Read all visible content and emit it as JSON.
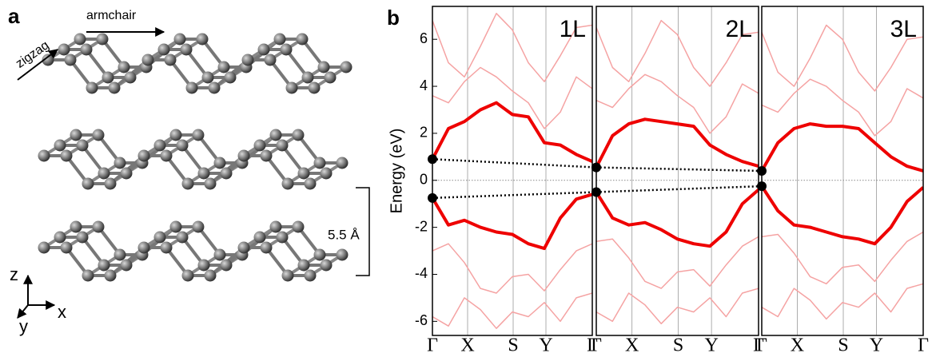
{
  "figure": {
    "panel_a_label": "a",
    "panel_b_label": "b",
    "armchair": "armchair",
    "zigzag": "zigzag",
    "interlayer": "5.5 Å",
    "axis_z": "z",
    "axis_x": "x",
    "axis_y": "y"
  },
  "chart_data": [
    {
      "type": "line",
      "title": "1L",
      "ylabel": "Energy (eV)",
      "x": [
        0,
        0.1,
        0.2,
        0.3,
        0.4,
        0.5,
        0.6,
        0.7,
        0.8,
        0.9,
        1
      ],
      "xlim": [
        0,
        1
      ],
      "xticks": [
        {
          "value": 0,
          "label": "Γ"
        },
        {
          "value": 0.22,
          "label": "X"
        },
        {
          "value": 0.505,
          "label": "S"
        },
        {
          "value": 0.71,
          "label": "Y"
        },
        {
          "value": 1,
          "label": "Γ"
        }
      ],
      "ylim": [
        -6.6,
        7.4
      ],
      "yticks": [
        -6,
        -4,
        -2,
        0,
        2,
        4,
        6
      ],
      "zero_line": true,
      "series": [
        {
          "color": "#f5a3a3",
          "line_width": 1.5,
          "values": [
            6.8,
            5.0,
            4.4,
            5.7,
            7.1,
            6.4,
            5.0,
            4.2,
            5.3,
            6.5,
            6.6
          ]
        },
        {
          "color": "#f5a3a3",
          "line_width": 1.5,
          "values": [
            3.6,
            3.3,
            4.2,
            4.8,
            4.4,
            3.8,
            3.3,
            2.2,
            2.9,
            4.4,
            3.9
          ]
        },
        {
          "color": "#f5a3a3",
          "line_width": 1.5,
          "values": [
            -3.0,
            -2.7,
            -3.5,
            -4.6,
            -4.8,
            -4.1,
            -4.0,
            -4.7,
            -3.8,
            -3.0,
            -2.7
          ]
        },
        {
          "color": "#f5a3a3",
          "line_width": 1.5,
          "values": [
            -5.8,
            -6.2,
            -5.0,
            -5.5,
            -6.3,
            -5.6,
            -5.8,
            -5.2,
            -6.0,
            -5.0,
            -4.8
          ]
        },
        {
          "color": "#ee0000",
          "line_width": 4,
          "marker_first": true,
          "values": [
            0.9,
            2.2,
            2.5,
            3.0,
            3.3,
            2.8,
            2.7,
            1.6,
            1.5,
            1.1,
            0.8
          ]
        },
        {
          "color": "#ee0000",
          "line_width": 4,
          "marker_first": true,
          "values": [
            -0.75,
            -1.9,
            -1.7,
            -2.0,
            -2.2,
            -2.3,
            -2.7,
            -2.9,
            -1.6,
            -0.8,
            -0.6
          ]
        }
      ]
    },
    {
      "type": "line",
      "title": "2L",
      "x": [
        0,
        0.1,
        0.2,
        0.3,
        0.4,
        0.5,
        0.6,
        0.7,
        0.8,
        0.9,
        1
      ],
      "xlim": [
        0,
        1
      ],
      "xticks": [
        {
          "value": 0,
          "label": "Γ"
        },
        {
          "value": 0.22,
          "label": "X"
        },
        {
          "value": 0.505,
          "label": "S"
        },
        {
          "value": 0.71,
          "label": "Y"
        },
        {
          "value": 1,
          "label": "Γ"
        }
      ],
      "ylim": [
        -6.6,
        7.4
      ],
      "zero_line": true,
      "series": [
        {
          "color": "#f5a3a3",
          "line_width": 1.5,
          "values": [
            6.5,
            4.8,
            4.2,
            5.4,
            6.8,
            6.2,
            4.8,
            4.0,
            5.0,
            6.2,
            6.3
          ]
        },
        {
          "color": "#f5a3a3",
          "line_width": 1.5,
          "values": [
            3.4,
            3.1,
            3.9,
            4.5,
            4.2,
            3.6,
            3.1,
            2.0,
            2.7,
            4.1,
            3.7
          ]
        },
        {
          "color": "#f5a3a3",
          "line_width": 1.5,
          "values": [
            -2.6,
            -2.5,
            -3.3,
            -4.3,
            -4.6,
            -3.9,
            -3.8,
            -4.5,
            -3.6,
            -2.8,
            -2.4
          ]
        },
        {
          "color": "#f5a3a3",
          "line_width": 1.5,
          "values": [
            -5.6,
            -6.0,
            -4.8,
            -5.3,
            -6.1,
            -5.4,
            -5.6,
            -5.0,
            -5.8,
            -4.8,
            -4.6
          ]
        },
        {
          "color": "#ee0000",
          "line_width": 4,
          "marker_first": true,
          "values": [
            0.55,
            1.9,
            2.4,
            2.6,
            2.5,
            2.4,
            2.3,
            1.5,
            1.1,
            0.8,
            0.6
          ]
        },
        {
          "color": "#ee0000",
          "line_width": 4,
          "marker_first": true,
          "values": [
            -0.5,
            -1.6,
            -1.9,
            -1.8,
            -2.1,
            -2.5,
            -2.7,
            -2.8,
            -2.2,
            -1.0,
            -0.4
          ]
        }
      ]
    },
    {
      "type": "line",
      "title": "3L",
      "x": [
        0,
        0.1,
        0.2,
        0.3,
        0.4,
        0.5,
        0.6,
        0.7,
        0.8,
        0.9,
        1
      ],
      "xlim": [
        0,
        1
      ],
      "xticks": [
        {
          "value": 0,
          "label": "Γ"
        },
        {
          "value": 0.22,
          "label": "X"
        },
        {
          "value": 0.505,
          "label": "S"
        },
        {
          "value": 0.71,
          "label": "Y"
        },
        {
          "value": 1,
          "label": "Γ"
        }
      ],
      "ylim": [
        -6.6,
        7.4
      ],
      "zero_line": true,
      "series": [
        {
          "color": "#f5a3a3",
          "line_width": 1.5,
          "values": [
            6.3,
            4.6,
            4.0,
            5.2,
            6.6,
            6.0,
            4.6,
            3.8,
            4.8,
            6.0,
            6.1
          ]
        },
        {
          "color": "#f5a3a3",
          "line_width": 1.5,
          "values": [
            3.2,
            2.9,
            3.7,
            4.3,
            4.0,
            3.4,
            2.9,
            1.9,
            2.5,
            3.9,
            3.5
          ]
        },
        {
          "color": "#f5a3a3",
          "line_width": 1.5,
          "values": [
            -2.4,
            -2.3,
            -3.1,
            -4.1,
            -4.4,
            -3.7,
            -3.6,
            -4.3,
            -3.4,
            -2.6,
            -2.2
          ]
        },
        {
          "color": "#f5a3a3",
          "line_width": 1.5,
          "values": [
            -5.4,
            -5.8,
            -4.6,
            -5.1,
            -5.9,
            -5.2,
            -5.4,
            -4.8,
            -5.6,
            -4.6,
            -4.4
          ]
        },
        {
          "color": "#ee0000",
          "line_width": 4,
          "marker_first": true,
          "values": [
            0.4,
            1.6,
            2.2,
            2.4,
            2.3,
            2.3,
            2.2,
            1.6,
            1.0,
            0.6,
            0.4
          ]
        },
        {
          "color": "#ee0000",
          "line_width": 4,
          "marker_first": true,
          "values": [
            -0.25,
            -1.3,
            -1.9,
            -2.0,
            -2.2,
            -2.4,
            -2.5,
            -2.7,
            -2.0,
            -0.9,
            -0.3
          ]
        }
      ]
    }
  ]
}
